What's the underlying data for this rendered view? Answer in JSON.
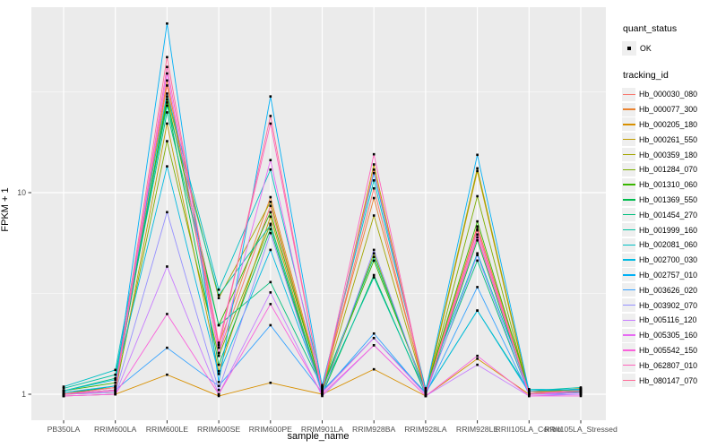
{
  "chart_data": {
    "type": "line",
    "title": "",
    "xlabel": "sample_name",
    "ylabel": "FPKM + 1",
    "y_scale": "log10",
    "y_ticks": [
      "1",
      "10"
    ],
    "ylim": [
      0.93,
      83
    ],
    "grid": "ggplot-gray-panel-white-gridlines",
    "legend_position": "right",
    "point_marker": "black-square",
    "categories": [
      "PB350LA",
      "RRIM600LA",
      "RRIM600LE",
      "RRIM600SE",
      "RRIM600PE",
      "RRIM901LA",
      "RRIM928BA",
      "RRIM928LA",
      "RRIM928LE",
      "RRII105LA_Control",
      "RRII105LA_Stressed"
    ],
    "series": [
      {
        "name": "Hb_000030_080",
        "color": "#F8766D",
        "values": [
          1.0,
          1.04,
          34,
          1.6,
          8.6,
          1.04,
          10.5,
          1.0,
          6.5,
          1.0,
          1.0
        ]
      },
      {
        "name": "Hb_000077_300",
        "color": "#EA8331",
        "values": [
          1.0,
          1.08,
          36,
          1.75,
          9.5,
          1.08,
          9.4,
          1.04,
          6.8,
          1.04,
          1.02
        ]
      },
      {
        "name": "Hb_000205_180",
        "color": "#D89000",
        "values": [
          0.98,
          1.0,
          1.25,
          0.98,
          1.14,
          1.0,
          1.33,
          0.98,
          1.5,
          1.0,
          1.07
        ]
      },
      {
        "name": "Hb_000261_550",
        "color": "#C09B00",
        "values": [
          1.0,
          1.02,
          22,
          1.3,
          7.6,
          1.0,
          13.8,
          1.0,
          12.8,
          1.0,
          1.04
        ]
      },
      {
        "name": "Hb_000359_180",
        "color": "#A3A500",
        "values": [
          1.02,
          1.08,
          30,
          3.0,
          9.0,
          1.04,
          7.7,
          1.02,
          13.2,
          1.02,
          1.06
        ]
      },
      {
        "name": "Hb_001284_070",
        "color": "#7CAE00",
        "values": [
          1.0,
          1.05,
          18,
          1.55,
          7.0,
          1.0,
          5.0,
          1.0,
          9.6,
          1.0,
          1.0
        ]
      },
      {
        "name": "Hb_001310_060",
        "color": "#39B600",
        "values": [
          1.04,
          1.14,
          29,
          2.2,
          8.0,
          1.06,
          4.6,
          1.04,
          7.2,
          1.04,
          1.05
        ]
      },
      {
        "name": "Hb_001369_550",
        "color": "#00BB4E",
        "values": [
          1.0,
          1.1,
          28,
          1.4,
          6.6,
          1.0,
          3.9,
          1.0,
          5.8,
          1.0,
          1.03
        ]
      },
      {
        "name": "Hb_001454_270",
        "color": "#00BF7D",
        "values": [
          1.04,
          1.2,
          25,
          2.2,
          3.6,
          1.08,
          4.8,
          1.04,
          4.6,
          1.0,
          1.02
        ]
      },
      {
        "name": "Hb_001999_160",
        "color": "#00C1A3",
        "values": [
          1.07,
          1.25,
          27,
          3.1,
          6.9,
          1.04,
          3.8,
          1.02,
          2.6,
          1.04,
          1.08
        ]
      },
      {
        "name": "Hb_002081_060",
        "color": "#00BFC4",
        "values": [
          1.09,
          1.32,
          31,
          3.3,
          13.0,
          1.11,
          11.5,
          1.07,
          5.0,
          1.06,
          1.05
        ]
      },
      {
        "name": "Hb_002700_030",
        "color": "#00BAE0",
        "values": [
          1.04,
          1.18,
          13.5,
          1.26,
          5.2,
          1.04,
          1.9,
          1.02,
          2.6,
          1.02,
          1.04
        ]
      },
      {
        "name": "Hb_002757_010",
        "color": "#00B0F6",
        "values": [
          1.02,
          1.1,
          69,
          1.15,
          30,
          1.09,
          12.5,
          1.04,
          15.4,
          1.04,
          1.06
        ]
      },
      {
        "name": "Hb_003626_020",
        "color": "#35A2FF",
        "values": [
          1.0,
          1.05,
          1.7,
          1.1,
          2.2,
          1.02,
          2.0,
          1.0,
          3.4,
          1.0,
          1.02
        ]
      },
      {
        "name": "Hb_003902_070",
        "color": "#9590FF",
        "values": [
          1.0,
          1.02,
          8.0,
          1.05,
          6.3,
          1.0,
          5.2,
          1.0,
          4.9,
          1.0,
          1.0
        ]
      },
      {
        "name": "Hb_005116_120",
        "color": "#C77CFF",
        "values": [
          0.98,
          1.0,
          4.3,
          1.0,
          3.2,
          0.98,
          1.75,
          0.98,
          1.4,
          0.98,
          1.0
        ]
      },
      {
        "name": "Hb_005305_160",
        "color": "#E76BF3",
        "values": [
          1.0,
          1.04,
          39,
          1.6,
          14.5,
          1.02,
          1.9,
          1.0,
          6.2,
          1.0,
          1.02
        ]
      },
      {
        "name": "Hb_005542_150",
        "color": "#FA62DB",
        "values": [
          0.98,
          1.0,
          2.5,
          1.0,
          2.8,
          1.0,
          1.75,
          0.98,
          1.55,
          0.98,
          0.98
        ]
      },
      {
        "name": "Hb_062807_010",
        "color": "#FF62BC",
        "values": [
          1.0,
          1.05,
          42,
          1.8,
          22,
          1.05,
          15.5,
          1.0,
          6.6,
          1.0,
          1.04
        ]
      },
      {
        "name": "Hb_080147_070",
        "color": "#FF6A98",
        "values": [
          1.0,
          1.08,
          47,
          1.7,
          24,
          1.04,
          13.0,
          1.02,
          6.0,
          1.02,
          1.04
        ]
      }
    ]
  },
  "axes": {
    "y_title": "FPKM + 1",
    "x_title": "sample_name",
    "y_tick_labels": [
      "10",
      "1"
    ]
  },
  "legend": {
    "quant_status": {
      "title": "quant_status",
      "items": [
        {
          "label": "OK",
          "marker": "point"
        }
      ]
    },
    "tracking": {
      "title": "tracking_id"
    }
  },
  "colors": {
    "panel_bg": "#EBEBEB",
    "gridline": "#FFFFFF",
    "tick_label": "#4D4D4D",
    "tick_mark": "#333333",
    "point": "#000000",
    "legend_key_bg": "#EFEFEF",
    "background": "#FFFFFF"
  }
}
